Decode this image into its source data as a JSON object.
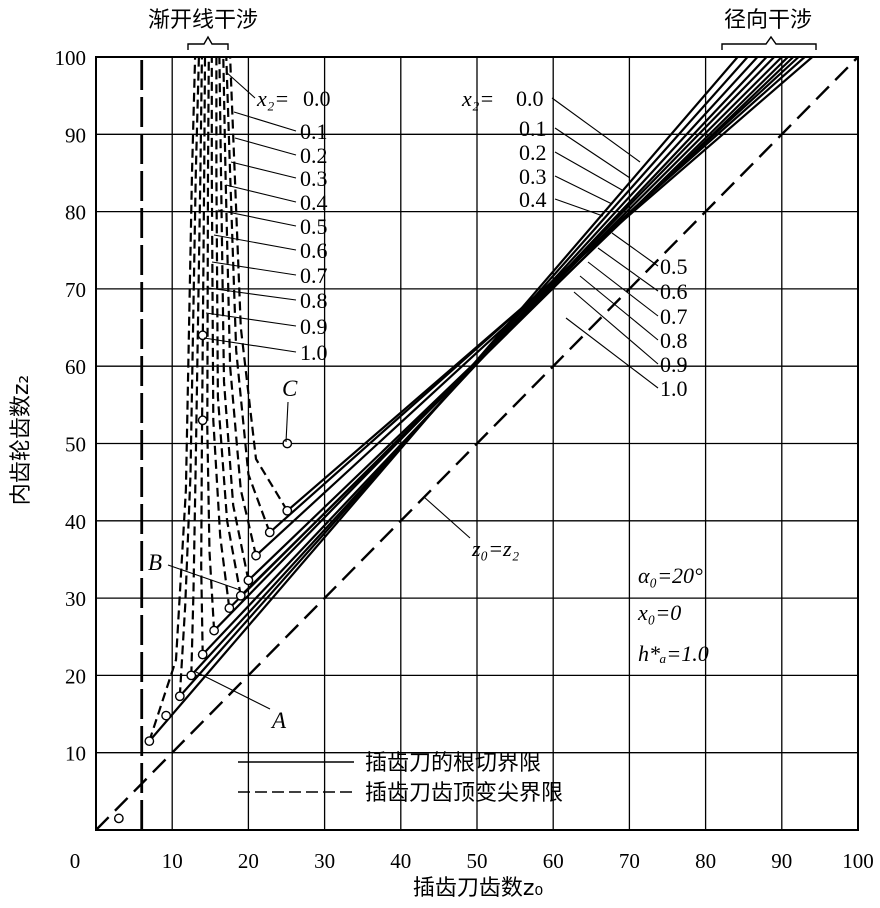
{
  "chart_data": {
    "type": "line",
    "xlabel": "插齿刀齿数z₀",
    "ylabel": "内齿轮齿数z₂",
    "xlim": [
      0,
      100
    ],
    "ylim": [
      0,
      100
    ],
    "grid": true,
    "x_ticks": [
      "0",
      "10",
      "20",
      "30",
      "40",
      "50",
      "60",
      "70",
      "80",
      "90",
      "100"
    ],
    "y_ticks": [
      "10",
      "20",
      "30",
      "40",
      "50",
      "60",
      "70",
      "80",
      "90",
      "100"
    ],
    "header_left": "渐开线干涉",
    "header_right": "径向干涉",
    "x2_values": [
      "0.0",
      "0.1",
      "0.2",
      "0.3",
      "0.4",
      "0.5",
      "0.6",
      "0.7",
      "0.8",
      "0.9",
      "1.0"
    ],
    "x2_symbol": "x₂=",
    "diagonal_label": "z₀=z₂",
    "params": [
      "α₀=20°",
      "x₀=0",
      "h*ₐ=1.0"
    ],
    "point_labels": [
      "A",
      "B",
      "C"
    ],
    "legend": [
      {
        "label": "插齿刀的根切界限",
        "style": "solid"
      },
      {
        "label": "插齿刀齿顶变尖界限",
        "style": "dashed"
      }
    ],
    "radial_limit_series": [
      {
        "name": "0.0",
        "points": [
          [
            25.1,
            41.3
          ],
          [
            94.0,
            100
          ]
        ]
      },
      {
        "name": "0.1",
        "points": [
          [
            22.8,
            38.5
          ],
          [
            93.0,
            100
          ]
        ]
      },
      {
        "name": "0.2",
        "points": [
          [
            21.0,
            35.5
          ],
          [
            92.2,
            100
          ]
        ]
      },
      {
        "name": "0.3",
        "points": [
          [
            20.0,
            32.3
          ],
          [
            91.5,
            100
          ]
        ]
      },
      {
        "name": "0.4",
        "points": [
          [
            19.0,
            30.3
          ],
          [
            90.8,
            100
          ]
        ]
      },
      {
        "name": "0.5",
        "points": [
          [
            17.5,
            28.7
          ],
          [
            90.0,
            100
          ]
        ]
      },
      {
        "name": "0.6",
        "points": [
          [
            15.5,
            25.8
          ],
          [
            89.0,
            100
          ]
        ]
      },
      {
        "name": "0.7",
        "points": [
          [
            14.0,
            22.7
          ],
          [
            88.0,
            100
          ]
        ]
      },
      {
        "name": "0.8",
        "points": [
          [
            12.5,
            20.0
          ],
          [
            86.8,
            100
          ]
        ]
      },
      {
        "name": "0.9",
        "points": [
          [
            11.0,
            17.3
          ],
          [
            85.5,
            100
          ]
        ]
      },
      {
        "name": "1.0",
        "points": [
          [
            7.0,
            11.5
          ],
          [
            84.2,
            100
          ]
        ]
      }
    ],
    "involute_limit_series": [
      {
        "name": "0.0",
        "points": [
          [
            25.1,
            41.3
          ],
          [
            21.0,
            48
          ],
          [
            19.0,
            65
          ],
          [
            18.2,
            85
          ],
          [
            17.6,
            100
          ]
        ]
      },
      {
        "name": "0.1",
        "points": [
          [
            22.8,
            38.5
          ],
          [
            20.0,
            46
          ],
          [
            18.4,
            62
          ],
          [
            17.6,
            85
          ],
          [
            17.1,
            100
          ]
        ]
      },
      {
        "name": "0.2",
        "points": [
          [
            21.0,
            35.5
          ],
          [
            19.0,
            44
          ],
          [
            17.6,
            60
          ],
          [
            17.0,
            85
          ],
          [
            16.7,
            100
          ]
        ]
      },
      {
        "name": "0.3",
        "points": [
          [
            20.0,
            32.3
          ],
          [
            18.0,
            42
          ],
          [
            16.8,
            58
          ],
          [
            16.4,
            85
          ],
          [
            16.2,
            100
          ]
        ]
      },
      {
        "name": "0.4",
        "points": [
          [
            19.0,
            30.3
          ],
          [
            17.2,
            40
          ],
          [
            16.0,
            56
          ],
          [
            15.8,
            85
          ],
          [
            15.8,
            100
          ]
        ]
      },
      {
        "name": "0.5",
        "points": [
          [
            17.5,
            28.7
          ],
          [
            16.3,
            38
          ],
          [
            15.4,
            53
          ],
          [
            15.2,
            85
          ],
          [
            15.2,
            100
          ]
        ]
      },
      {
        "name": "0.6",
        "points": [
          [
            15.5,
            25.8
          ],
          [
            14.9,
            36
          ],
          [
            14.6,
            52
          ],
          [
            14.7,
            85
          ],
          [
            14.8,
            100
          ]
        ]
      },
      {
        "name": "0.7",
        "points": [
          [
            14.0,
            22.7
          ],
          [
            13.8,
            34
          ],
          [
            13.9,
            50
          ],
          [
            14.2,
            85
          ],
          [
            14.3,
            100
          ]
        ]
      },
      {
        "name": "0.8",
        "points": [
          [
            12.5,
            20.0
          ],
          [
            12.8,
            31
          ],
          [
            13.1,
            48
          ],
          [
            13.7,
            85
          ],
          [
            13.9,
            100
          ]
        ]
      },
      {
        "name": "0.9",
        "points": [
          [
            11.0,
            17.3
          ],
          [
            11.7,
            29
          ],
          [
            12.4,
            46
          ],
          [
            13.1,
            85
          ],
          [
            13.5,
            100
          ]
        ]
      },
      {
        "name": "1.0",
        "points": [
          [
            7.0,
            11.5
          ],
          [
            10.5,
            22
          ],
          [
            11.8,
            44
          ],
          [
            12.6,
            85
          ],
          [
            13.0,
            100
          ]
        ]
      }
    ],
    "tip_limit_line": {
      "x": 6.0,
      "y_range": [
        0,
        100
      ]
    },
    "diagonal": {
      "points": [
        [
          0,
          0
        ],
        [
          100,
          100
        ]
      ]
    },
    "marked_points": [
      [
        25.1,
        41.3
      ],
      [
        22.8,
        38.5
      ],
      [
        21.0,
        35.5
      ],
      [
        20.0,
        32.3
      ],
      [
        19.0,
        30.3
      ],
      [
        17.5,
        28.7
      ],
      [
        15.5,
        25.8
      ],
      [
        14.0,
        22.7
      ],
      [
        12.5,
        20.0
      ],
      [
        11.0,
        17.3
      ],
      [
        9.2,
        14.8
      ],
      [
        7.0,
        11.5
      ],
      [
        3.0,
        1.5
      ],
      [
        14.0,
        53.0
      ],
      [
        14.0,
        64.0
      ]
    ]
  }
}
